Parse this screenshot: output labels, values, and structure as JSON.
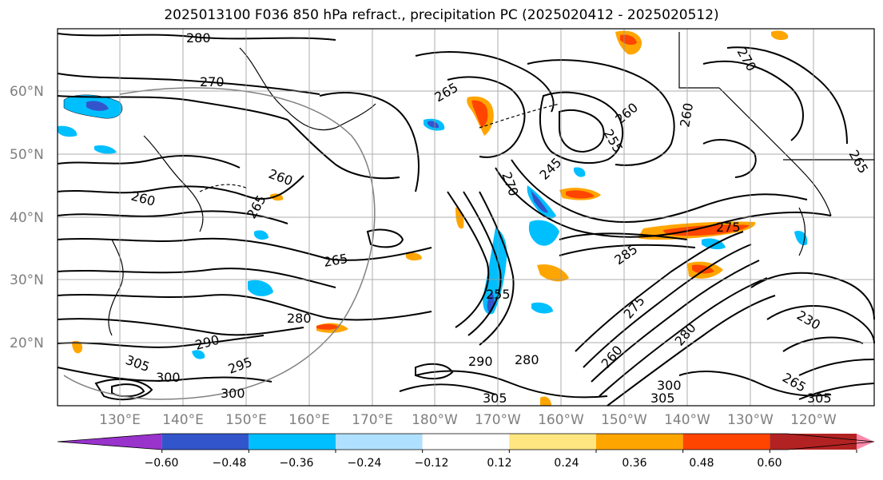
{
  "title": "2025013100 F036 850 hPa refract., precipitation PC (2025020412 - 2025020512)",
  "map": {
    "lat_labels": [
      "60°N",
      "50°N",
      "40°N",
      "30°N",
      "20°N"
    ],
    "lon_labels": [
      "130°E",
      "140°E",
      "150°E",
      "160°E",
      "170°E",
      "180°W",
      "170°W",
      "160°W",
      "150°W",
      "140°W",
      "130°W",
      "120°W"
    ],
    "contour_labels": [
      "280",
      "270",
      "265",
      "260",
      "260",
      "265",
      "265",
      "270",
      "255",
      "245",
      "260",
      "260",
      "270",
      "265",
      "285",
      "275",
      "255",
      "280",
      "290",
      "305",
      "300",
      "295",
      "300",
      "305",
      "290",
      "280",
      "300",
      "305",
      "260",
      "275",
      "280",
      "230",
      "265",
      "305"
    ]
  },
  "colorbar": {
    "ticks": [
      "−0.60",
      "−0.48",
      "−0.36",
      "−0.24",
      "−0.12",
      "0.12",
      "0.24",
      "0.36",
      "0.48",
      "0.60"
    ],
    "colors": [
      "#9933cc",
      "#000080",
      "#3355cc",
      "#00bfff",
      "#b0e0ff",
      "#ffffff",
      "#ffe680",
      "#ffa500",
      "#ff4500",
      "#b22222",
      "#ff88aa"
    ]
  }
}
